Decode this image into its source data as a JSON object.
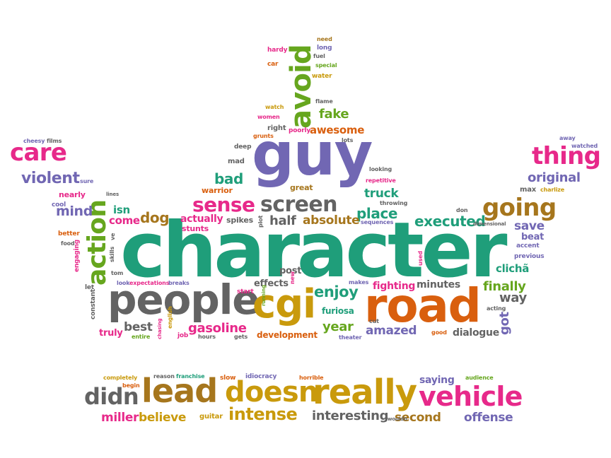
{
  "colors": {
    "green": "#1f9e7a",
    "purple": "#7167b3",
    "gray": "#636363",
    "orange": "#d95f0e",
    "gold": "#c99a0c",
    "pink": "#e7298a",
    "lime": "#66a61e",
    "brown": "#a6761d"
  },
  "words": [
    {
      "text": "character",
      "color": "green"
    },
    {
      "text": "guy",
      "color": "purple"
    },
    {
      "text": "road",
      "color": "orange"
    },
    {
      "text": "people",
      "color": "gray"
    },
    {
      "text": "cgi",
      "color": "gold"
    },
    {
      "text": "action",
      "color": "lime"
    },
    {
      "text": "avoid",
      "color": "lime"
    },
    {
      "text": "really",
      "color": "gold"
    },
    {
      "text": "lead",
      "color": "brown"
    },
    {
      "text": "doesn",
      "color": "gold"
    },
    {
      "text": "vehicle",
      "color": "pink"
    },
    {
      "text": "didn",
      "color": "gray"
    },
    {
      "text": "care",
      "color": "pink"
    },
    {
      "text": "thing",
      "color": "pink"
    },
    {
      "text": "going",
      "color": "brown"
    },
    {
      "text": "screen",
      "color": "gray"
    },
    {
      "text": "sense",
      "color": "pink"
    },
    {
      "text": "violent",
      "color": "purple"
    },
    {
      "text": "original",
      "color": "purple"
    },
    {
      "text": "bad",
      "color": "green"
    },
    {
      "text": "place",
      "color": "green"
    },
    {
      "text": "executed",
      "color": "green"
    },
    {
      "text": "dog",
      "color": "brown"
    },
    {
      "text": "half",
      "color": "gray"
    },
    {
      "text": "absolute",
      "color": "brown"
    },
    {
      "text": "mind",
      "color": "purple"
    },
    {
      "text": "isn",
      "color": "green"
    },
    {
      "text": "come",
      "color": "pink"
    },
    {
      "text": "fake",
      "color": "lime"
    },
    {
      "text": "awesome",
      "color": "orange"
    },
    {
      "text": "truck",
      "color": "green"
    },
    {
      "text": "enjoy",
      "color": "green"
    },
    {
      "text": "finally",
      "color": "lime"
    },
    {
      "text": "way",
      "color": "gray"
    },
    {
      "text": "save",
      "color": "purple"
    },
    {
      "text": "beat",
      "color": "purple"
    },
    {
      "text": "clichã",
      "color": "green"
    },
    {
      "text": "best",
      "color": "gray"
    },
    {
      "text": "gasoline",
      "color": "pink"
    },
    {
      "text": "year",
      "color": "lime"
    },
    {
      "text": "amazed",
      "color": "purple"
    },
    {
      "text": "dialogue",
      "color": "gray"
    },
    {
      "text": "intense",
      "color": "gold"
    },
    {
      "text": "interesting",
      "color": "gray"
    },
    {
      "text": "second",
      "color": "brown"
    },
    {
      "text": "offense",
      "color": "purple"
    },
    {
      "text": "miller",
      "color": "pink"
    },
    {
      "text": "believe",
      "color": "gold"
    },
    {
      "text": "saying",
      "color": "purple"
    },
    {
      "text": "got",
      "color": "purple"
    },
    {
      "text": "actually",
      "color": "pink"
    },
    {
      "text": "fighting",
      "color": "pink"
    },
    {
      "text": "minutes",
      "color": "gray"
    },
    {
      "text": "truly",
      "color": "pink"
    },
    {
      "text": "development",
      "color": "orange"
    },
    {
      "text": "effects",
      "color": "gray"
    },
    {
      "text": "post",
      "color": "gray"
    },
    {
      "text": "furiosa",
      "color": "green"
    },
    {
      "text": "stunts",
      "color": "pink"
    },
    {
      "text": "spikes",
      "color": "gray"
    },
    {
      "text": "warrior",
      "color": "orange"
    },
    {
      "text": "great",
      "color": "brown"
    },
    {
      "text": "mad",
      "color": "gray"
    },
    {
      "text": "deep",
      "color": "gray"
    },
    {
      "text": "nearly",
      "color": "pink"
    },
    {
      "text": "cool",
      "color": "purple"
    },
    {
      "text": "better",
      "color": "orange"
    },
    {
      "text": "food",
      "color": "gray"
    },
    {
      "text": "engaging",
      "color": "pink"
    },
    {
      "text": "let",
      "color": "gray"
    },
    {
      "text": "constant",
      "color": "gray"
    },
    {
      "text": "cheesy",
      "color": "purple"
    },
    {
      "text": "films",
      "color": "gray"
    },
    {
      "text": "sure",
      "color": "purple"
    },
    {
      "text": "lines",
      "color": "gray"
    },
    {
      "text": "skills",
      "color": "gray"
    },
    {
      "text": "ve",
      "color": "gray"
    },
    {
      "text": "tom",
      "color": "gray"
    },
    {
      "text": "look",
      "color": "purple"
    },
    {
      "text": "expectations",
      "color": "pink"
    },
    {
      "text": "breaks",
      "color": "purple"
    },
    {
      "text": "start",
      "color": "pink"
    },
    {
      "text": "english",
      "color": "gold"
    },
    {
      "text": "chasing",
      "color": "pink"
    },
    {
      "text": "job",
      "color": "pink"
    },
    {
      "text": "entire",
      "color": "lime"
    },
    {
      "text": "hours",
      "color": "gray"
    },
    {
      "text": "gets",
      "color": "gray"
    },
    {
      "text": "new",
      "color": "pink"
    },
    {
      "text": "makes",
      "color": "purple"
    },
    {
      "text": "cut",
      "color": "gray"
    },
    {
      "text": "theater",
      "color": "purple"
    },
    {
      "text": "good",
      "color": "orange"
    },
    {
      "text": "acting",
      "color": "gray"
    },
    {
      "text": "used",
      "color": "pink"
    },
    {
      "text": "previous",
      "color": "purple"
    },
    {
      "text": "accent",
      "color": "purple"
    },
    {
      "text": "dimensional",
      "color": "gray"
    },
    {
      "text": "don",
      "color": "gray"
    },
    {
      "text": "charlize",
      "color": "gold"
    },
    {
      "text": "max",
      "color": "gray"
    },
    {
      "text": "away",
      "color": "purple"
    },
    {
      "text": "watched",
      "color": "purple"
    },
    {
      "text": "looking",
      "color": "gray"
    },
    {
      "text": "repetitive",
      "color": "pink"
    },
    {
      "text": "throwing",
      "color": "gray"
    },
    {
      "text": "sequences",
      "color": "purple"
    },
    {
      "text": "plot",
      "color": "gray"
    },
    {
      "text": "lots",
      "color": "gray"
    },
    {
      "text": "grunts",
      "color": "orange"
    },
    {
      "text": "poorly",
      "color": "pink"
    },
    {
      "text": "right",
      "color": "gray"
    },
    {
      "text": "running",
      "color": "lime"
    },
    {
      "text": "women",
      "color": "pink"
    },
    {
      "text": "watch",
      "color": "gold"
    },
    {
      "text": "flame",
      "color": "gray"
    },
    {
      "text": "water",
      "color": "gold"
    },
    {
      "text": "special",
      "color": "lime"
    },
    {
      "text": "fuel",
      "color": "gray"
    },
    {
      "text": "long",
      "color": "purple"
    },
    {
      "text": "need",
      "color": "brown"
    },
    {
      "text": "hardy",
      "color": "pink"
    },
    {
      "text": "car",
      "color": "orange"
    },
    {
      "text": "completely",
      "color": "gold"
    },
    {
      "text": "begin",
      "color": "orange"
    },
    {
      "text": "reason",
      "color": "gray"
    },
    {
      "text": "franchise",
      "color": "green"
    },
    {
      "text": "slow",
      "color": "orange"
    },
    {
      "text": "idiocracy",
      "color": "purple"
    },
    {
      "text": "horrible",
      "color": "orange"
    },
    {
      "text": "audience",
      "color": "lime"
    },
    {
      "text": "guitar",
      "color": "gold"
    },
    {
      "text": "wouldn",
      "color": "gray"
    }
  ]
}
